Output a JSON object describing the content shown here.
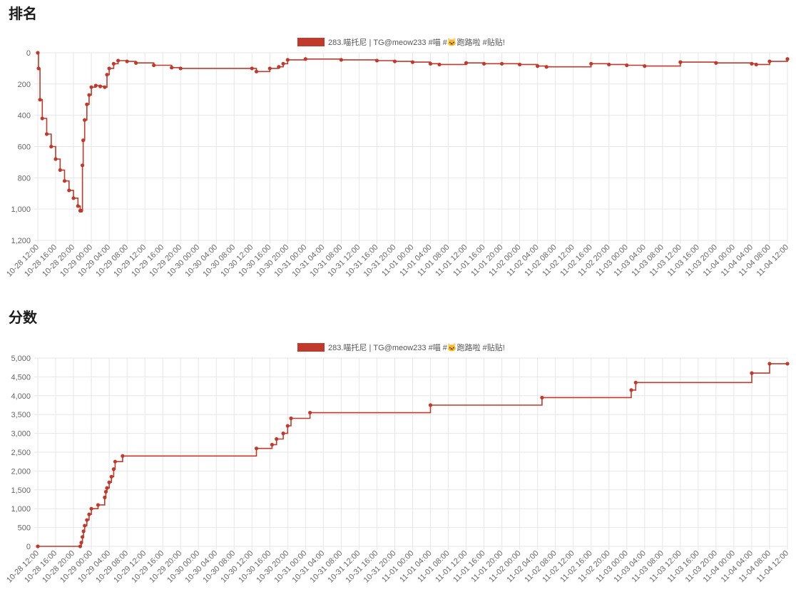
{
  "sections": {
    "rank_title": "排名",
    "score_title": "分数"
  },
  "colors": {
    "series": "#c0392b",
    "grid": "#e6e6e6",
    "axis": "#bbbbbb"
  },
  "chart_data": [
    {
      "type": "line",
      "id": "rank",
      "title": "",
      "xlabel": "",
      "ylabel": "",
      "y_reversed": true,
      "ylim": [
        0,
        1200
      ],
      "y_ticks": [
        "0",
        "200",
        "400",
        "600",
        "800",
        "1,000",
        "1,200"
      ],
      "xlim": [
        "10-28 12:00",
        "11-04 12:00"
      ],
      "x_tick_labels": [
        "10-28 12:00",
        "10-28 16:00",
        "10-28 20:00",
        "10-29 00:00",
        "10-29 04:00",
        "10-29 08:00",
        "10-29 12:00",
        "10-29 16:00",
        "10-29 20:00",
        "10-30 00:00",
        "10-30 04:00",
        "10-30 08:00",
        "10-30 12:00",
        "10-30 16:00",
        "10-30 20:00",
        "10-31 00:00",
        "10-31 04:00",
        "10-31 08:00",
        "10-31 12:00",
        "10-31 16:00",
        "10-31 20:00",
        "11-01 00:00",
        "11-01 04:00",
        "11-01 08:00",
        "11-01 12:00",
        "11-01 16:00",
        "11-01 20:00",
        "11-02 00:00",
        "11-02 04:00",
        "11-02 08:00",
        "11-02 12:00",
        "11-02 16:00",
        "11-02 20:00",
        "11-03 00:00",
        "11-03 04:00",
        "11-03 08:00",
        "11-03 12:00",
        "11-03 16:00",
        "11-03 20:00",
        "11-04 00:00",
        "11-04 04:00",
        "11-04 08:00",
        "11-04 12:00"
      ],
      "legend": {
        "position": "top-center"
      },
      "grid": true,
      "stepped": true,
      "series": [
        {
          "name": "283.喵托尼 | TG@meow233 #喵 #🐱跑路啦 #贴贴!",
          "x": [
            "10-28 12:00",
            "10-28 12:10",
            "10-28 12:30",
            "10-28 13:00",
            "10-28 14:00",
            "10-28 15:00",
            "10-28 16:00",
            "10-28 17:00",
            "10-28 18:00",
            "10-28 19:00",
            "10-28 20:00",
            "10-28 21:00",
            "10-28 21:30",
            "10-28 21:45",
            "10-28 22:00",
            "10-28 22:10",
            "10-28 22:30",
            "10-28 23:00",
            "10-28 23:30",
            "10-29 00:00",
            "10-29 01:00",
            "10-29 02:00",
            "10-29 03:00",
            "10-29 03:30",
            "10-29 04:00",
            "10-29 05:00",
            "10-29 06:00",
            "10-29 08:00",
            "10-29 10:00",
            "10-29 14:00",
            "10-29 18:00",
            "10-29 20:00",
            "10-30 12:00",
            "10-30 13:00",
            "10-30 16:00",
            "10-30 18:00",
            "10-30 19:00",
            "10-30 20:00",
            "10-31 00:00",
            "10-31 08:00",
            "10-31 16:00",
            "10-31 20:00",
            "11-01 00:00",
            "11-01 04:00",
            "11-01 06:00",
            "11-01 12:00",
            "11-01 16:00",
            "11-01 20:00",
            "11-02 00:00",
            "11-02 04:00",
            "11-02 06:00",
            "11-02 16:00",
            "11-02 20:00",
            "11-03 00:00",
            "11-03 04:00",
            "11-03 12:00",
            "11-03 20:00",
            "11-04 04:00",
            "11-04 05:00",
            "11-04 08:00",
            "11-04 12:00"
          ],
          "values": [
            0,
            100,
            300,
            420,
            520,
            600,
            680,
            750,
            820,
            880,
            930,
            980,
            1010,
            1010,
            720,
            560,
            430,
            330,
            270,
            220,
            210,
            215,
            220,
            140,
            100,
            70,
            50,
            55,
            65,
            80,
            95,
            100,
            100,
            120,
            100,
            90,
            70,
            45,
            40,
            45,
            50,
            55,
            60,
            70,
            75,
            65,
            70,
            70,
            75,
            85,
            90,
            70,
            75,
            80,
            85,
            60,
            65,
            70,
            75,
            55,
            40
          ]
        }
      ]
    },
    {
      "type": "line",
      "id": "score",
      "title": "",
      "xlabel": "",
      "ylabel": "",
      "ylim": [
        0,
        5000
      ],
      "y_ticks": [
        "0",
        "500",
        "1,000",
        "1,500",
        "2,000",
        "2,500",
        "3,000",
        "3,500",
        "4,000",
        "4,500",
        "5,000"
      ],
      "xlim": [
        "10-28 12:00",
        "11-04 12:00"
      ],
      "x_tick_labels": [
        "10-28 12:00",
        "10-28 16:00",
        "10-28 20:00",
        "10-29 00:00",
        "10-29 04:00",
        "10-29 08:00",
        "10-29 12:00",
        "10-29 16:00",
        "10-29 20:00",
        "10-30 00:00",
        "10-30 04:00",
        "10-30 08:00",
        "10-30 12:00",
        "10-30 16:00",
        "10-30 20:00",
        "10-31 00:00",
        "10-31 04:00",
        "10-31 08:00",
        "10-31 12:00",
        "10-31 16:00",
        "10-31 20:00",
        "11-01 00:00",
        "11-01 04:00",
        "11-01 08:00",
        "11-01 12:00",
        "11-01 16:00",
        "11-01 20:00",
        "11-02 00:00",
        "11-02 04:00",
        "11-02 08:00",
        "11-02 12:00",
        "11-02 16:00",
        "11-02 20:00",
        "11-03 00:00",
        "11-03 04:00",
        "11-03 08:00",
        "11-03 12:00",
        "11-03 16:00",
        "11-03 20:00",
        "11-04 00:00",
        "11-04 04:00",
        "11-04 08:00",
        "11-04 12:00"
      ],
      "legend": {
        "position": "top-center"
      },
      "grid": true,
      "stepped": true,
      "series": [
        {
          "name": "283.喵托尼 | TG@meow233 #喵 #🐱跑路啦 #贴贴!",
          "x": [
            "10-28 12:00",
            "10-28 21:30",
            "10-28 21:45",
            "10-28 22:00",
            "10-28 22:15",
            "10-28 22:30",
            "10-28 23:00",
            "10-28 23:30",
            "10-29 00:00",
            "10-29 01:30",
            "10-29 03:00",
            "10-29 03:15",
            "10-29 03:30",
            "10-29 04:00",
            "10-29 04:30",
            "10-29 05:00",
            "10-29 05:20",
            "10-29 07:00",
            "10-30 13:00",
            "10-30 16:30",
            "10-30 17:30",
            "10-30 19:00",
            "10-30 20:00",
            "10-30 20:45",
            "10-31 01:00",
            "11-01 04:00",
            "11-02 05:00",
            "11-03 01:00",
            "11-03 02:00",
            "11-04 04:00",
            "11-04 08:00",
            "11-04 12:00"
          ],
          "values": [
            0,
            0,
            100,
            250,
            400,
            550,
            700,
            850,
            1000,
            1100,
            1300,
            1450,
            1550,
            1700,
            1850,
            2050,
            2250,
            2400,
            2600,
            2700,
            2850,
            3000,
            3200,
            3400,
            3550,
            3750,
            3950,
            4150,
            4350,
            4600,
            4850,
            4850
          ]
        }
      ]
    }
  ]
}
